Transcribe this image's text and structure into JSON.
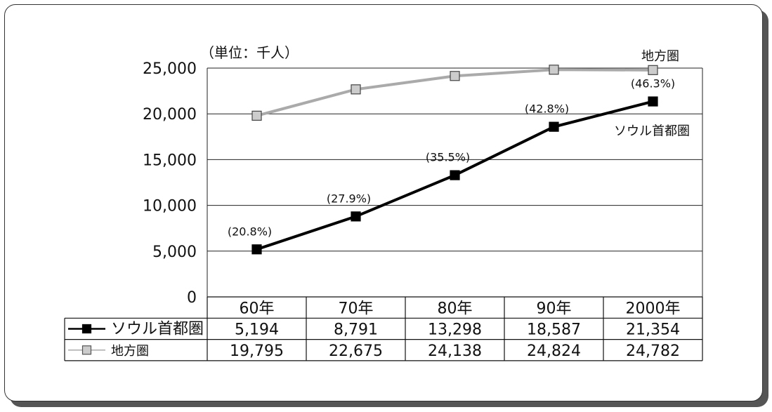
{
  "chart_data": {
    "type": "line",
    "unit_label": "（単位：千人）",
    "categories": [
      "60年",
      "70年",
      "80年",
      "90年",
      "2000年"
    ],
    "ylim": [
      0,
      25000
    ],
    "yticks": [
      0,
      5000,
      10000,
      15000,
      20000,
      25000
    ],
    "ytick_labels": [
      "0",
      "5,000",
      "10,000",
      "15,000",
      "20,000",
      "25,000"
    ],
    "grid": true,
    "series": [
      {
        "name": "地方圏",
        "color": "#aaaaaa",
        "marker_fill": "#cccccc",
        "values": [
          19795,
          22675,
          24138,
          24824,
          24782
        ],
        "display": [
          "19,795",
          "22,675",
          "24,138",
          "24,824",
          "24,782"
        ]
      },
      {
        "name": "ソウル首都圏",
        "color": "#000000",
        "marker_fill": "#000000",
        "values": [
          5194,
          8791,
          13298,
          18587,
          21354
        ],
        "display": [
          "5,194",
          "8,791",
          "13,298",
          "18,587",
          "21,354"
        ],
        "share_labels": [
          "(20.8%)",
          "(27.9%)",
          "(35.5%)",
          "(42.8%)",
          "(46.3%)"
        ]
      }
    ],
    "table_row_labels": [
      "ソウル首都圏",
      "地方圏"
    ]
  }
}
